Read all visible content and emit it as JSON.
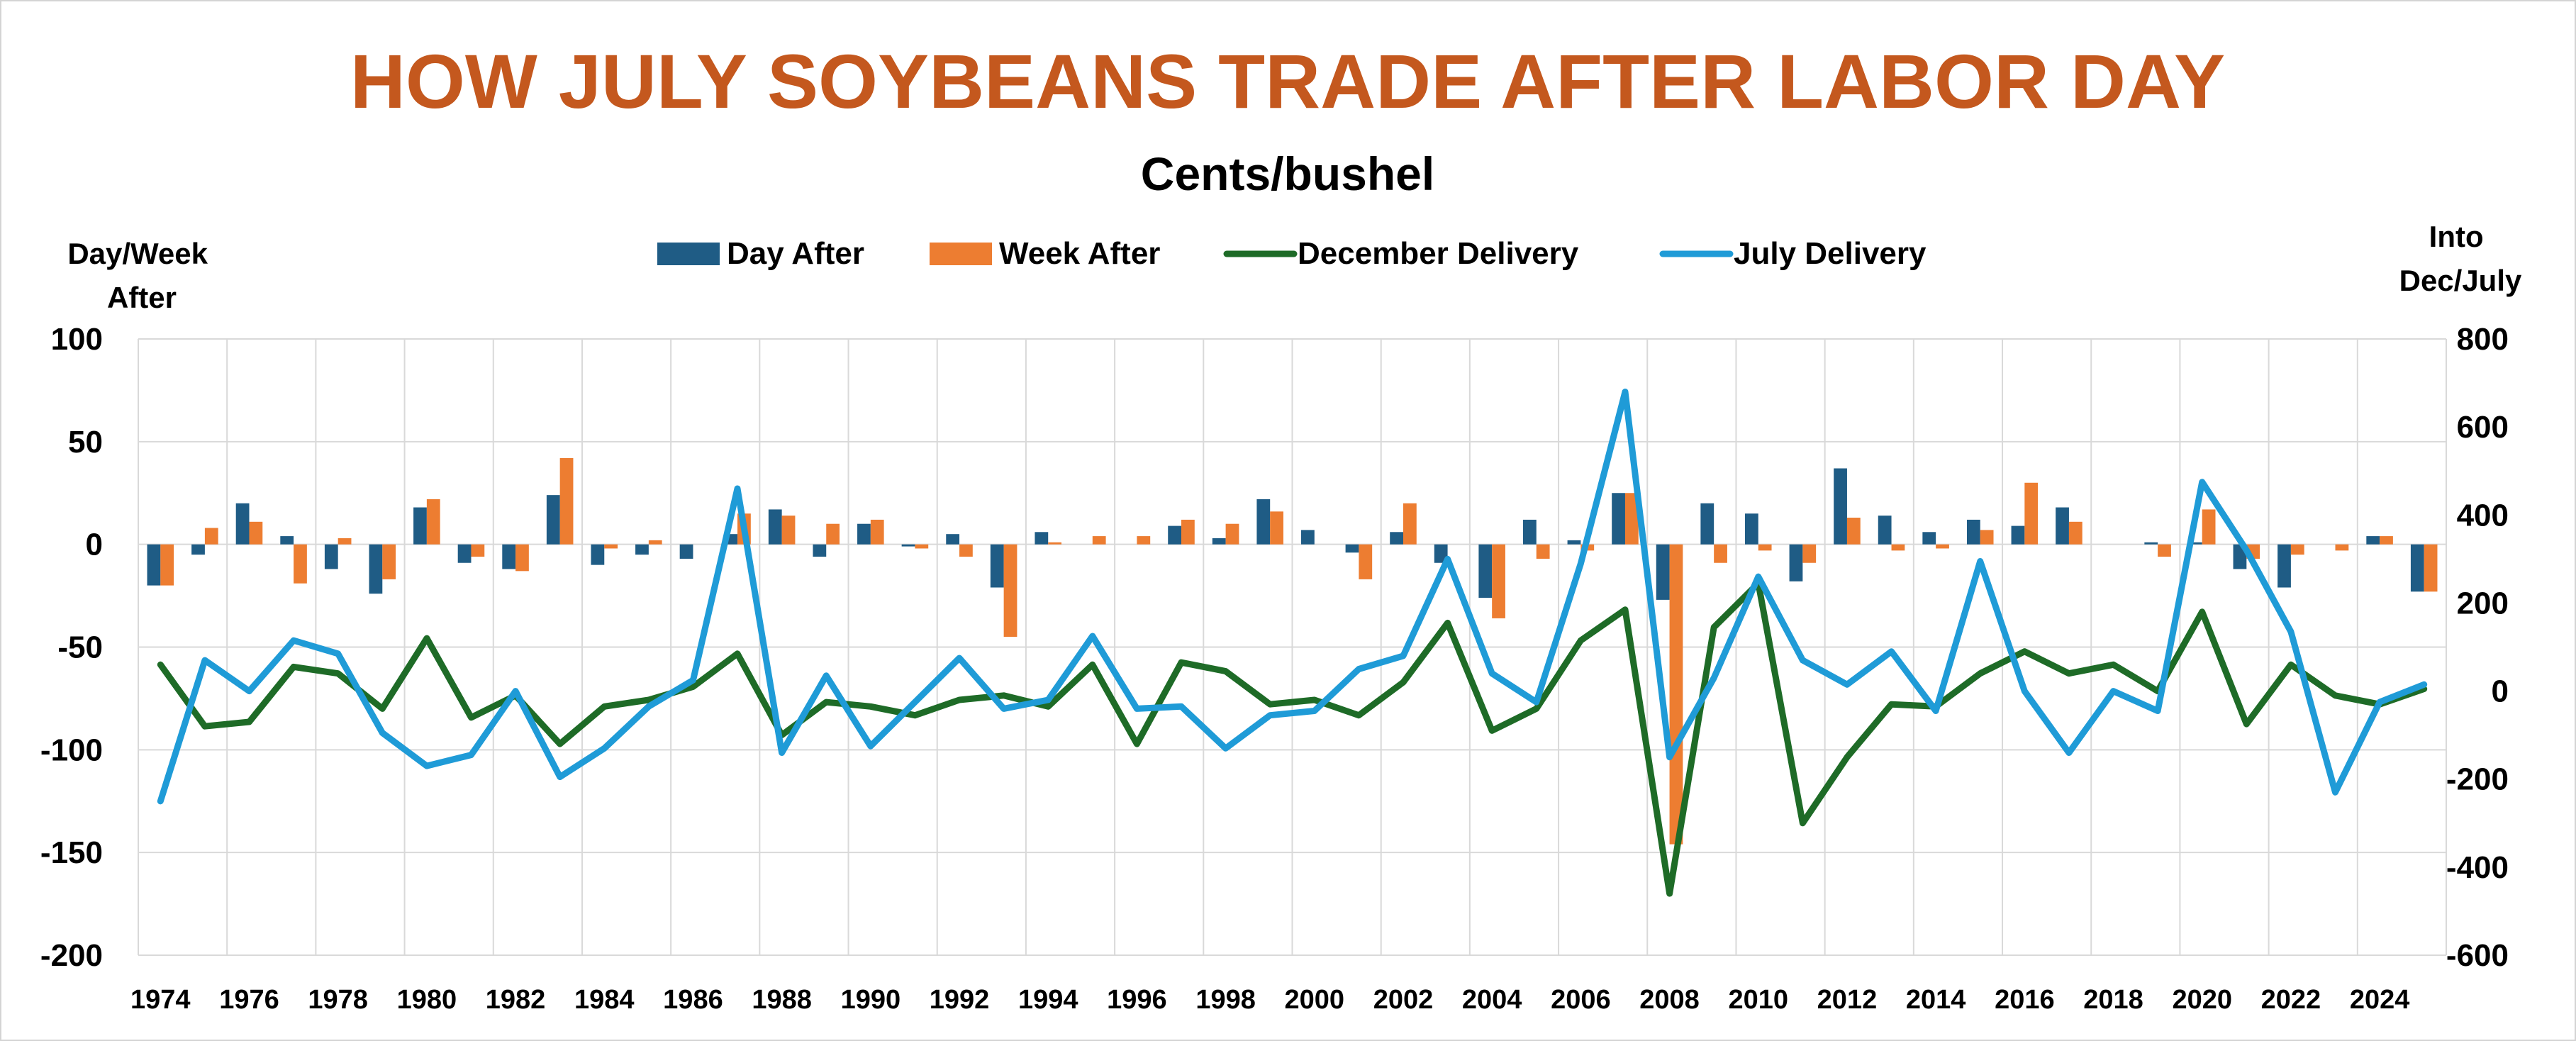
{
  "chart_data": {
    "type": "bar",
    "title": "HOW JULY SOYBEANS  TRADE AFTER LABOR DAY",
    "subtitle": "Cents/bushel",
    "y_left_label": [
      "Day/Week",
      "After"
    ],
    "y_right_label": [
      "Into",
      "Dec/July"
    ],
    "y_left_range": [
      -200,
      100
    ],
    "y_left_ticks": [
      100,
      50,
      0,
      -50,
      -100,
      -150,
      -200
    ],
    "y_right_range": [
      -600,
      800
    ],
    "y_right_ticks": [
      800,
      600,
      400,
      200,
      0,
      -200,
      -400,
      -600
    ],
    "x_tick_labels": [
      "1974",
      "1976",
      "1978",
      "1980",
      "1982",
      "1984",
      "1986",
      "1988",
      "1990",
      "1992",
      "1994",
      "1996",
      "1998",
      "2000",
      "2002",
      "2004",
      "2006",
      "2008",
      "2010",
      "2012",
      "2014",
      "2016",
      "2018",
      "2020",
      "2022",
      "2024"
    ],
    "categories": [
      1974,
      1975,
      1976,
      1977,
      1978,
      1979,
      1980,
      1981,
      1982,
      1983,
      1984,
      1985,
      1986,
      1987,
      1988,
      1989,
      1990,
      1991,
      1992,
      1993,
      1994,
      1995,
      1996,
      1997,
      1998,
      1999,
      2000,
      2001,
      2002,
      2003,
      2004,
      2005,
      2006,
      2007,
      2008,
      2009,
      2010,
      2011,
      2012,
      2013,
      2014,
      2015,
      2016,
      2017,
      2018,
      2019,
      2020,
      2021,
      2022,
      2023,
      2024,
      2025
    ],
    "grid": true,
    "legend_position": "top",
    "series": [
      {
        "name": "Day After",
        "type": "bar",
        "axis": "left",
        "color": "#1f5c85",
        "values": [
          -20,
          -5,
          20,
          4,
          -12,
          -24,
          18,
          -9,
          -12,
          24,
          -10,
          -5,
          -7,
          5,
          17,
          -6,
          10,
          -1,
          5,
          -21,
          6,
          0,
          0,
          9,
          3,
          22,
          7,
          -4,
          6,
          -9,
          -26,
          12,
          2,
          25,
          -27,
          20,
          15,
          -18,
          37,
          14,
          6,
          12,
          9,
          18,
          0,
          1,
          1,
          -12,
          -21,
          0,
          4,
          -23
        ]
      },
      {
        "name": "Week After",
        "type": "bar",
        "axis": "left",
        "color": "#ed7d31",
        "values": [
          -20,
          8,
          11,
          -19,
          3,
          -17,
          22,
          -6,
          -13,
          42,
          -2,
          2,
          0,
          15,
          14,
          10,
          12,
          -2,
          -6,
          -45,
          1,
          4,
          4,
          12,
          10,
          16,
          0,
          -17,
          20,
          0,
          -36,
          -7,
          -3,
          25,
          -146,
          -9,
          -3,
          -9,
          13,
          -3,
          -2,
          7,
          30,
          11,
          0,
          -6,
          17,
          -7,
          -5,
          -3,
          4,
          -23
        ]
      },
      {
        "name": "December Delivery",
        "type": "line",
        "axis": "right",
        "color": "#1e6b27",
        "values": [
          60,
          -80,
          -70,
          55,
          40,
          -40,
          120,
          -60,
          -10,
          -120,
          -35,
          -20,
          10,
          85,
          -100,
          -25,
          -35,
          -55,
          -20,
          -10,
          -35,
          60,
          -120,
          65,
          45,
          -30,
          -20,
          -55,
          20,
          155,
          -90,
          -40,
          115,
          185,
          -460,
          145,
          245,
          -300,
          -150,
          -30,
          -35,
          40,
          90,
          40,
          60,
          0,
          180,
          -75,
          60,
          -10,
          -30,
          5
        ]
      },
      {
        "name": "July Delivery",
        "type": "line",
        "axis": "right",
        "color": "#1f9bd7",
        "values": [
          -250,
          70,
          0,
          115,
          85,
          -95,
          -170,
          -145,
          0,
          -195,
          -130,
          -35,
          25,
          460,
          -140,
          35,
          -125,
          -25,
          75,
          -40,
          -20,
          125,
          -40,
          -35,
          -130,
          -55,
          -45,
          50,
          80,
          300,
          40,
          -25,
          290,
          680,
          -150,
          30,
          260,
          70,
          15,
          90,
          -45,
          295,
          0,
          -140,
          0,
          -45,
          475,
          320,
          135,
          -230,
          -25,
          15
        ]
      }
    ]
  }
}
